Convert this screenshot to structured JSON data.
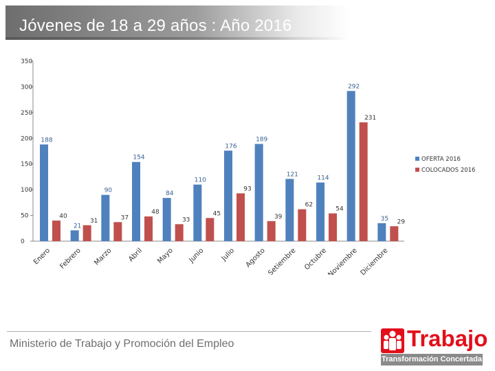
{
  "title": "Jóvenes de 18 a 29 años : Año 2016",
  "footer": {
    "ministry": "Ministerio de Trabajo y Promoción del Empleo",
    "logo_word": "Trabajo",
    "logo_tagline": "Transformación Concertada"
  },
  "colors": {
    "oferta": "#4f81bd",
    "colocados": "#c0504d",
    "brand_red": "#e20f1a"
  },
  "chart_data": {
    "type": "bar",
    "title": "Jóvenes de 18 a 29 años : Año 2016",
    "categories": [
      "Enero",
      "Febrero",
      "Marzo",
      "Abril",
      "Mayo",
      "Junio",
      "Julio",
      "Agosto",
      "Setiembre",
      "Octubre",
      "Noviembre",
      "Diciembre"
    ],
    "series": [
      {
        "name": "OFERTA 2016",
        "values": [
          188,
          21,
          90,
          154,
          84,
          110,
          176,
          189,
          121,
          114,
          292,
          35
        ]
      },
      {
        "name": "COLOCADOS 2016",
        "values": [
          40,
          31,
          37,
          48,
          33,
          45,
          93,
          39,
          62,
          54,
          231,
          29
        ]
      }
    ],
    "ylim": [
      0,
      350
    ],
    "yticks": [
      0,
      50,
      100,
      150,
      200,
      250,
      300,
      350
    ],
    "xlabel": "",
    "ylabel": "",
    "grid": false,
    "legend": "right",
    "legend_entries": [
      "OFERTA 2016",
      "COLOCADOS 2016"
    ]
  }
}
